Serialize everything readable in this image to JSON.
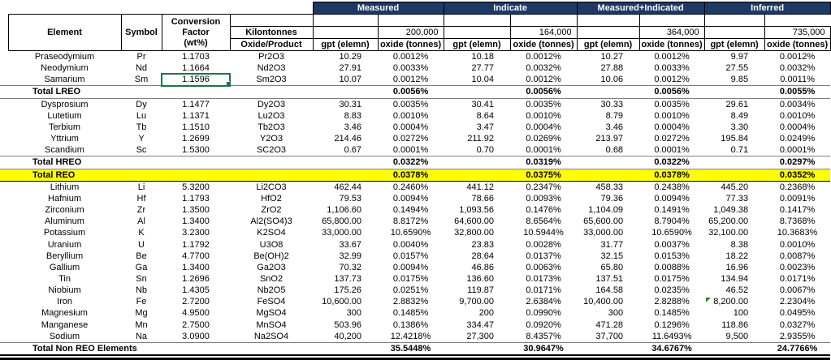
{
  "colors": {
    "header_bg": "#1f3864",
    "header_text": "#ffffff",
    "highlight_yellow": "#ffff00",
    "selection_green": "#217346",
    "flag_green": "#2e8b2e"
  },
  "header": {
    "groups": [
      {
        "label": "Measured"
      },
      {
        "label": "Indicate"
      },
      {
        "label": "Measured+Indicated"
      },
      {
        "label": "Inferred"
      }
    ],
    "element_label": "Element",
    "symbol_label": "Symbol",
    "conversion_factor_label": "Conversion Factor",
    "conversion_factor_unit": "(wt%)",
    "kilotonnes_label": "Kilontonnes",
    "oxide_product_label": "Oxide/Product",
    "gpt_label": "gpt (elemn)",
    "oxide_label": "oxide (tonnes)",
    "kilotonnes": [
      "200,000",
      "164,000",
      "364,000",
      "735,000"
    ]
  },
  "rows": [
    {
      "type": "element",
      "element": "Praseodymium",
      "symbol": "Pr",
      "factor": "1.1703",
      "product": "Pr2O3",
      "values": [
        "10.29",
        "0.0012%",
        "10.18",
        "0.0012%",
        "10.27",
        "0.0012%",
        "9.97",
        "0.0012%"
      ]
    },
    {
      "type": "element",
      "element": "Neodymium",
      "symbol": "Nd",
      "factor": "1.1664",
      "product": "Nd2O3",
      "values": [
        "27.91",
        "0.0033%",
        "27.77",
        "0.0032%",
        "27.88",
        "0.0033%",
        "27.55",
        "0.0032%"
      ]
    },
    {
      "type": "element",
      "element": "Samarium",
      "symbol": "Sm",
      "factor": "1.1596",
      "product": "Sm2O3",
      "selected": true,
      "values": [
        "10.07",
        "0.0012%",
        "10.04",
        "0.0012%",
        "10.06",
        "0.0012%",
        "9.85",
        "0.0011%"
      ]
    },
    {
      "type": "total",
      "element": "Total LREO",
      "values": [
        "",
        "0.0056%",
        "",
        "0.0056%",
        "",
        "0.0056%",
        "",
        "0.0055%"
      ]
    },
    {
      "type": "element",
      "element": "Dysprosium",
      "symbol": "Dy",
      "factor": "1.1477",
      "product": "Dy2O3",
      "values": [
        "30.31",
        "0.0035%",
        "30.41",
        "0.0035%",
        "30.33",
        "0.0035%",
        "29.61",
        "0.0034%"
      ]
    },
    {
      "type": "element",
      "element": "Lutetium",
      "symbol": "Lu",
      "factor": "1.1371",
      "product": "Lu2O3",
      "values": [
        "8.83",
        "0.0010%",
        "8.64",
        "0.0010%",
        "8.79",
        "0.0010%",
        "8.49",
        "0.0010%"
      ]
    },
    {
      "type": "element",
      "element": "Terbium",
      "symbol": "Tb",
      "factor": "1.1510",
      "product": "Tb2O3",
      "values": [
        "3.46",
        "0.0004%",
        "3.47",
        "0.0004%",
        "3.46",
        "0.0004%",
        "3.30",
        "0.0004%"
      ]
    },
    {
      "type": "element",
      "element": "Yttrium",
      "symbol": "Y",
      "factor": "1.2699",
      "product": "Y2O3",
      "values": [
        "214.46",
        "0.0272%",
        "211.92",
        "0.0269%",
        "213.97",
        "0.0272%",
        "195.84",
        "0.0249%"
      ]
    },
    {
      "type": "element",
      "element": "Scandium",
      "symbol": "Sc",
      "factor": "1.5300",
      "product": "SC2O3",
      "values": [
        "0.67",
        "0.0001%",
        "0.70",
        "0.0001%",
        "0.68",
        "0.0001%",
        "0.71",
        "0.0001%"
      ]
    },
    {
      "type": "total",
      "element": "Total HREO",
      "values": [
        "",
        "0.0322%",
        "",
        "0.0319%",
        "",
        "0.0322%",
        "",
        "0.0297%"
      ]
    },
    {
      "type": "total_highlight",
      "element": "Total REO",
      "values": [
        "",
        "0.0378%",
        "",
        "0.0375%",
        "",
        "0.0378%",
        "",
        "0.0352%"
      ]
    },
    {
      "type": "element",
      "element": "Lithium",
      "symbol": "Li",
      "factor": "5.3200",
      "product": "Li2CO3",
      "values": [
        "462.44",
        "0.2460%",
        "441.12",
        "0.2347%",
        "458.33",
        "0.2438%",
        "445.20",
        "0.2368%"
      ]
    },
    {
      "type": "element",
      "element": "Hafnium",
      "symbol": "Hf",
      "factor": "1.1793",
      "product": "HfO2",
      "values": [
        "79.53",
        "0.0094%",
        "78.66",
        "0.0093%",
        "79.36",
        "0.0094%",
        "77.33",
        "0.0091%"
      ]
    },
    {
      "type": "element",
      "element": "Zirconium",
      "symbol": "Zr",
      "factor": "1.3500",
      "product": "ZrO2",
      "values": [
        "1,106.60",
        "0.1494%",
        "1,093.56",
        "0.1476%",
        "1,104.09",
        "0.1491%",
        "1,049.38",
        "0.1417%"
      ]
    },
    {
      "type": "element",
      "element": "Aluminum",
      "symbol": "Al",
      "factor": "1.3400",
      "product": "Al2(SO4)3",
      "values": [
        "65,800.00",
        "8.8172%",
        "64,600.00",
        "8.6564%",
        "65,600.00",
        "8.7904%",
        "65,200.00",
        "8.7368%"
      ]
    },
    {
      "type": "element",
      "element": "Potassium",
      "symbol": "K",
      "factor": "3.2300",
      "product": "K2SO4",
      "values": [
        "33,000.00",
        "10.6590%",
        "32,800.00",
        "10.5944%",
        "33,000.00",
        "10.6590%",
        "32,100.00",
        "10.3683%"
      ]
    },
    {
      "type": "element",
      "element": "Uranium",
      "symbol": "U",
      "factor": "1.1792",
      "product": "U3O8",
      "values": [
        "33.67",
        "0.0040%",
        "23.83",
        "0.0028%",
        "31.77",
        "0.0037%",
        "8.38",
        "0.0010%"
      ]
    },
    {
      "type": "element",
      "element": "Beryllium",
      "symbol": "Be",
      "factor": "4.7700",
      "product": "Be(OH)2",
      "values": [
        "32.99",
        "0.0157%",
        "28.64",
        "0.0137%",
        "32.15",
        "0.0153%",
        "18.22",
        "0.0087%"
      ]
    },
    {
      "type": "element",
      "element": "Gallium",
      "symbol": "Ga",
      "factor": "1.3400",
      "product": "Ga2O3",
      "values": [
        "70.32",
        "0.0094%",
        "46.86",
        "0.0063%",
        "65.80",
        "0.0088%",
        "16.96",
        "0.0023%"
      ]
    },
    {
      "type": "element",
      "element": "Tin",
      "symbol": "Sn",
      "factor": "1.2696",
      "product": "SnO2",
      "values": [
        "137.73",
        "0.0175%",
        "136.60",
        "0.0173%",
        "137.51",
        "0.0175%",
        "134.94",
        "0.0171%"
      ]
    },
    {
      "type": "element",
      "element": "Niobium",
      "symbol": "Nb",
      "factor": "1.4305",
      "product": "Nb2O5",
      "values": [
        "175.26",
        "0.0251%",
        "119.87",
        "0.0171%",
        "164.58",
        "0.0235%",
        "46.52",
        "0.0067%"
      ]
    },
    {
      "type": "element",
      "element": "Iron",
      "symbol": "Fe",
      "factor": "2.7200",
      "product": "FeSO4",
      "flag_index": 6,
      "values": [
        "10,600.00",
        "2.8832%",
        "9,700.00",
        "2.6384%",
        "10,400.00",
        "2.8288%",
        "8,200.00",
        "2.2304%"
      ]
    },
    {
      "type": "element",
      "element": "Magnesium",
      "symbol": "Mg",
      "factor": "4.9500",
      "product": "MgSO4",
      "values": [
        "300",
        "0.1485%",
        "200",
        "0.0990%",
        "300",
        "0.1485%",
        "100",
        "0.0495%"
      ]
    },
    {
      "type": "element",
      "element": "Manganese",
      "symbol": "Mn",
      "factor": "2.7500",
      "product": "MnSO4",
      "values": [
        "503.96",
        "0.1386%",
        "334.47",
        "0.0920%",
        "471.28",
        "0.1296%",
        "118.86",
        "0.0327%"
      ]
    },
    {
      "type": "element",
      "element": "Sodium",
      "symbol": "Na",
      "factor": "3.0900",
      "product": "Na2SO4",
      "values": [
        "40,200",
        "12.4218%",
        "27,300",
        "8.4357%",
        "37,700",
        "11.6493%",
        "9,500",
        "2.9355%"
      ]
    },
    {
      "type": "total",
      "element": "Total Non REO Elements",
      "last": true,
      "values": [
        "",
        "35.5448%",
        "",
        "30.9647%",
        "",
        "34.6767%",
        "",
        "24.7766%"
      ]
    }
  ]
}
